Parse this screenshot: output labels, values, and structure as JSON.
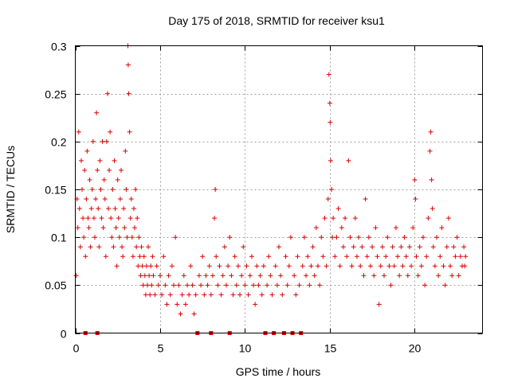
{
  "chart_data": {
    "type": "scatter",
    "title": "Day 175 of 2018, SRMTID for receiver ksu1",
    "xlabel": "GPS time / hours",
    "ylabel": "SRMTID / TECUs",
    "xlim": [
      0,
      24
    ],
    "ylim": [
      0,
      0.3
    ],
    "x_ticks": [
      0,
      5,
      10,
      15,
      20
    ],
    "x_tick_labels": [
      "0",
      "5",
      "10",
      "15",
      "20"
    ],
    "y_ticks": [
      0,
      0.05,
      0.1,
      0.15,
      0.2,
      0.25,
      0.3
    ],
    "y_tick_labels": [
      "0",
      "0.05",
      "0.1",
      "0.15",
      "0.2",
      "0.25",
      "0.3"
    ],
    "grid": true,
    "marker": "+",
    "color": "#e00000",
    "zero_level_markers_x": [
      0.6,
      1.3,
      7.2,
      8.0,
      9.1,
      11.2,
      11.7,
      12.3,
      12.8,
      13.3
    ],
    "series": [
      {
        "name": "SRMTID",
        "points": [
          [
            0.05,
            0.06
          ],
          [
            0.1,
            0.14
          ],
          [
            0.15,
            0.11
          ],
          [
            0.2,
            0.21
          ],
          [
            0.25,
            0.13
          ],
          [
            0.3,
            0.09
          ],
          [
            0.35,
            0.18
          ],
          [
            0.4,
            0.15
          ],
          [
            0.45,
            0.12
          ],
          [
            0.5,
            0.1
          ],
          [
            0.55,
            0.17
          ],
          [
            0.6,
            0.08
          ],
          [
            0.65,
            0.14
          ],
          [
            0.7,
            0.19
          ],
          [
            0.75,
            0.12
          ],
          [
            0.8,
            0.11
          ],
          [
            0.85,
            0.16
          ],
          [
            0.9,
            0.09
          ],
          [
            0.95,
            0.13
          ],
          [
            1.0,
            0.15
          ],
          [
            1.05,
            0.2
          ],
          [
            1.1,
            0.12
          ],
          [
            1.15,
            0.1
          ],
          [
            1.2,
            0.14
          ],
          [
            1.25,
            0.23
          ],
          [
            1.3,
            0.17
          ],
          [
            1.35,
            0.13
          ],
          [
            1.4,
            0.09
          ],
          [
            1.45,
            0.18
          ],
          [
            1.5,
            0.15
          ],
          [
            1.55,
            0.12
          ],
          [
            1.6,
            0.2
          ],
          [
            1.65,
            0.11
          ],
          [
            1.7,
            0.16
          ],
          [
            1.75,
            0.14
          ],
          [
            1.8,
            0.08
          ],
          [
            1.85,
            0.2
          ],
          [
            1.9,
            0.25
          ],
          [
            1.95,
            0.13
          ],
          [
            2.0,
            0.17
          ],
          [
            2.05,
            0.21
          ],
          [
            2.1,
            0.12
          ],
          [
            2.15,
            0.1
          ],
          [
            2.2,
            0.15
          ],
          [
            2.25,
            0.09
          ],
          [
            2.3,
            0.18
          ],
          [
            2.35,
            0.13
          ],
          [
            2.4,
            0.11
          ],
          [
            2.45,
            0.07
          ],
          [
            2.5,
            0.16
          ],
          [
            2.55,
            0.12
          ],
          [
            2.6,
            0.1
          ],
          [
            2.65,
            0.14
          ],
          [
            2.7,
            0.17
          ],
          [
            2.75,
            0.09
          ],
          [
            2.8,
            0.08
          ],
          [
            2.85,
            0.13
          ],
          [
            2.9,
            0.11
          ],
          [
            2.95,
            0.19
          ],
          [
            3.0,
            0.15
          ],
          [
            3.05,
            0.1
          ],
          [
            3.1,
            0.3
          ],
          [
            3.12,
            0.28
          ],
          [
            3.15,
            0.25
          ],
          [
            3.2,
            0.21
          ],
          [
            3.25,
            0.12
          ],
          [
            3.3,
            0.14
          ],
          [
            3.35,
            0.1
          ],
          [
            3.4,
            0.08
          ],
          [
            3.45,
            0.13
          ],
          [
            3.5,
            0.11
          ],
          [
            3.55,
            0.15
          ],
          [
            3.6,
            0.09
          ],
          [
            3.65,
            0.12
          ],
          [
            3.7,
            0.07
          ],
          [
            3.75,
            0.1
          ],
          [
            3.8,
            0.08
          ],
          [
            3.85,
            0.06
          ],
          [
            3.9,
            0.09
          ],
          [
            3.95,
            0.07
          ],
          [
            4.0,
            0.05
          ],
          [
            4.05,
            0.08
          ],
          [
            4.1,
            0.06
          ],
          [
            4.15,
            0.04
          ],
          [
            4.2,
            0.07
          ],
          [
            4.25,
            0.05
          ],
          [
            4.3,
            0.09
          ],
          [
            4.35,
            0.06
          ],
          [
            4.4,
            0.04
          ],
          [
            4.45,
            0.07
          ],
          [
            4.5,
            0.05
          ],
          [
            4.55,
            0.08
          ],
          [
            4.6,
            0.06
          ],
          [
            4.7,
            0.04
          ],
          [
            4.8,
            0.07
          ],
          [
            4.9,
            0.05
          ],
          [
            5.0,
            0.06
          ],
          [
            5.1,
            0.04
          ],
          [
            5.2,
            0.08
          ],
          [
            5.3,
            0.05
          ],
          [
            5.4,
            0.03
          ],
          [
            5.5,
            0.06
          ],
          [
            5.6,
            0.04
          ],
          [
            5.7,
            0.07
          ],
          [
            5.8,
            0.05
          ],
          [
            5.9,
            0.1
          ],
          [
            6.0,
            0.03
          ],
          [
            6.1,
            0.05
          ],
          [
            6.2,
            0.02
          ],
          [
            6.3,
            0.04
          ],
          [
            6.4,
            0.06
          ],
          [
            6.5,
            0.03
          ],
          [
            6.6,
            0.05
          ],
          [
            6.7,
            0.04
          ],
          [
            6.8,
            0.07
          ],
          [
            6.9,
            0.05
          ],
          [
            7.0,
            0.02
          ],
          [
            7.1,
            0.04
          ],
          [
            7.3,
            0.06
          ],
          [
            7.4,
            0.05
          ],
          [
            7.5,
            0.08
          ],
          [
            7.6,
            0.04
          ],
          [
            7.7,
            0.06
          ],
          [
            7.8,
            0.05
          ],
          [
            7.9,
            0.07
          ],
          [
            8.0,
            0.04
          ],
          [
            8.1,
            0.06
          ],
          [
            8.2,
            0.12
          ],
          [
            8.25,
            0.15
          ],
          [
            8.3,
            0.08
          ],
          [
            8.4,
            0.05
          ],
          [
            8.5,
            0.07
          ],
          [
            8.6,
            0.04
          ],
          [
            8.7,
            0.06
          ],
          [
            8.8,
            0.09
          ],
          [
            8.9,
            0.05
          ],
          [
            9.0,
            0.07
          ],
          [
            9.1,
            0.1
          ],
          [
            9.2,
            0.06
          ],
          [
            9.3,
            0.04
          ],
          [
            9.4,
            0.08
          ],
          [
            9.5,
            0.05
          ],
          [
            9.6,
            0.07
          ],
          [
            9.7,
            0.04
          ],
          [
            9.8,
            0.06
          ],
          [
            9.9,
            0.09
          ],
          [
            10.0,
            0.05
          ],
          [
            10.1,
            0.07
          ],
          [
            10.2,
            0.04
          ],
          [
            10.3,
            0.06
          ],
          [
            10.4,
            0.08
          ],
          [
            10.5,
            0.05
          ],
          [
            10.6,
            0.03
          ],
          [
            10.7,
            0.07
          ],
          [
            10.8,
            0.05
          ],
          [
            10.9,
            0.06
          ],
          [
            11.0,
            0.04
          ],
          [
            11.1,
            0.07
          ],
          [
            11.3,
            0.05
          ],
          [
            11.4,
            0.08
          ],
          [
            11.5,
            0.06
          ],
          [
            11.6,
            0.04
          ],
          [
            11.8,
            0.07
          ],
          [
            11.9,
            0.05
          ],
          [
            12.0,
            0.09
          ],
          [
            12.1,
            0.06
          ],
          [
            12.2,
            0.04
          ],
          [
            12.4,
            0.08
          ],
          [
            12.5,
            0.05
          ],
          [
            12.6,
            0.07
          ],
          [
            12.7,
            0.1
          ],
          [
            12.9,
            0.06
          ],
          [
            13.0,
            0.04
          ],
          [
            13.1,
            0.08
          ],
          [
            13.2,
            0.05
          ],
          [
            13.4,
            0.07
          ],
          [
            13.5,
            0.1
          ],
          [
            13.6,
            0.06
          ],
          [
            13.7,
            0.08
          ],
          [
            13.8,
            0.05
          ],
          [
            13.9,
            0.07
          ],
          [
            14.0,
            0.09
          ],
          [
            14.1,
            0.06
          ],
          [
            14.2,
            0.11
          ],
          [
            14.3,
            0.07
          ],
          [
            14.4,
            0.05
          ],
          [
            14.5,
            0.1
          ],
          [
            14.6,
            0.08
          ],
          [
            14.7,
            0.12
          ],
          [
            14.8,
            0.07
          ],
          [
            14.9,
            0.14
          ],
          [
            14.95,
            0.27
          ],
          [
            15.0,
            0.24
          ],
          [
            15.02,
            0.22
          ],
          [
            15.05,
            0.18
          ],
          [
            15.1,
            0.15
          ],
          [
            15.15,
            0.1
          ],
          [
            15.2,
            0.12
          ],
          [
            15.3,
            0.08
          ],
          [
            15.4,
            0.1
          ],
          [
            15.5,
            0.13
          ],
          [
            15.6,
            0.07
          ],
          [
            15.7,
            0.11
          ],
          [
            15.8,
            0.09
          ],
          [
            15.9,
            0.12
          ],
          [
            16.0,
            0.08
          ],
          [
            16.1,
            0.18
          ],
          [
            16.2,
            0.1
          ],
          [
            16.3,
            0.07
          ],
          [
            16.4,
            0.09
          ],
          [
            16.5,
            0.12
          ],
          [
            16.6,
            0.08
          ],
          [
            16.7,
            0.1
          ],
          [
            16.8,
            0.07
          ],
          [
            16.9,
            0.09
          ],
          [
            17.0,
            0.06
          ],
          [
            17.1,
            0.14
          ],
          [
            17.2,
            0.08
          ],
          [
            17.3,
            0.1
          ],
          [
            17.4,
            0.07
          ],
          [
            17.5,
            0.09
          ],
          [
            17.6,
            0.06
          ],
          [
            17.7,
            0.11
          ],
          [
            17.8,
            0.08
          ],
          [
            17.9,
            0.03
          ],
          [
            18.0,
            0.07
          ],
          [
            18.1,
            0.09
          ],
          [
            18.2,
            0.06
          ],
          [
            18.3,
            0.08
          ],
          [
            18.4,
            0.1
          ],
          [
            18.5,
            0.07
          ],
          [
            18.6,
            0.05
          ],
          [
            18.7,
            0.09
          ],
          [
            18.8,
            0.07
          ],
          [
            18.9,
            0.11
          ],
          [
            19.0,
            0.08
          ],
          [
            19.1,
            0.06
          ],
          [
            19.2,
            0.09
          ],
          [
            19.3,
            0.07
          ],
          [
            19.4,
            0.1
          ],
          [
            19.5,
            0.08
          ],
          [
            19.6,
            0.06
          ],
          [
            19.7,
            0.09
          ],
          [
            19.8,
            0.07
          ],
          [
            19.9,
            0.11
          ],
          [
            20.0,
            0.16
          ],
          [
            20.05,
            0.14
          ],
          [
            20.1,
            0.08
          ],
          [
            20.2,
            0.06
          ],
          [
            20.3,
            0.09
          ],
          [
            20.4,
            0.07
          ],
          [
            20.5,
            0.1
          ],
          [
            20.6,
            0.05
          ],
          [
            20.7,
            0.08
          ],
          [
            20.8,
            0.12
          ],
          [
            20.9,
            0.19
          ],
          [
            20.95,
            0.21
          ],
          [
            21.0,
            0.16
          ],
          [
            21.05,
            0.13
          ],
          [
            21.1,
            0.09
          ],
          [
            21.2,
            0.07
          ],
          [
            21.3,
            0.1
          ],
          [
            21.4,
            0.06
          ],
          [
            21.5,
            0.08
          ],
          [
            21.6,
            0.11
          ],
          [
            21.7,
            0.07
          ],
          [
            21.8,
            0.05
          ],
          [
            21.9,
            0.09
          ],
          [
            22.0,
            0.12
          ],
          [
            22.1,
            0.07
          ],
          [
            22.2,
            0.06
          ],
          [
            22.3,
            0.09
          ],
          [
            22.4,
            0.08
          ],
          [
            22.5,
            0.1
          ],
          [
            22.6,
            0.06
          ],
          [
            22.7,
            0.08
          ],
          [
            22.8,
            0.07
          ],
          [
            22.9,
            0.09
          ],
          [
            22.95,
            0.07
          ],
          [
            23.0,
            0.08
          ]
        ]
      }
    ]
  }
}
